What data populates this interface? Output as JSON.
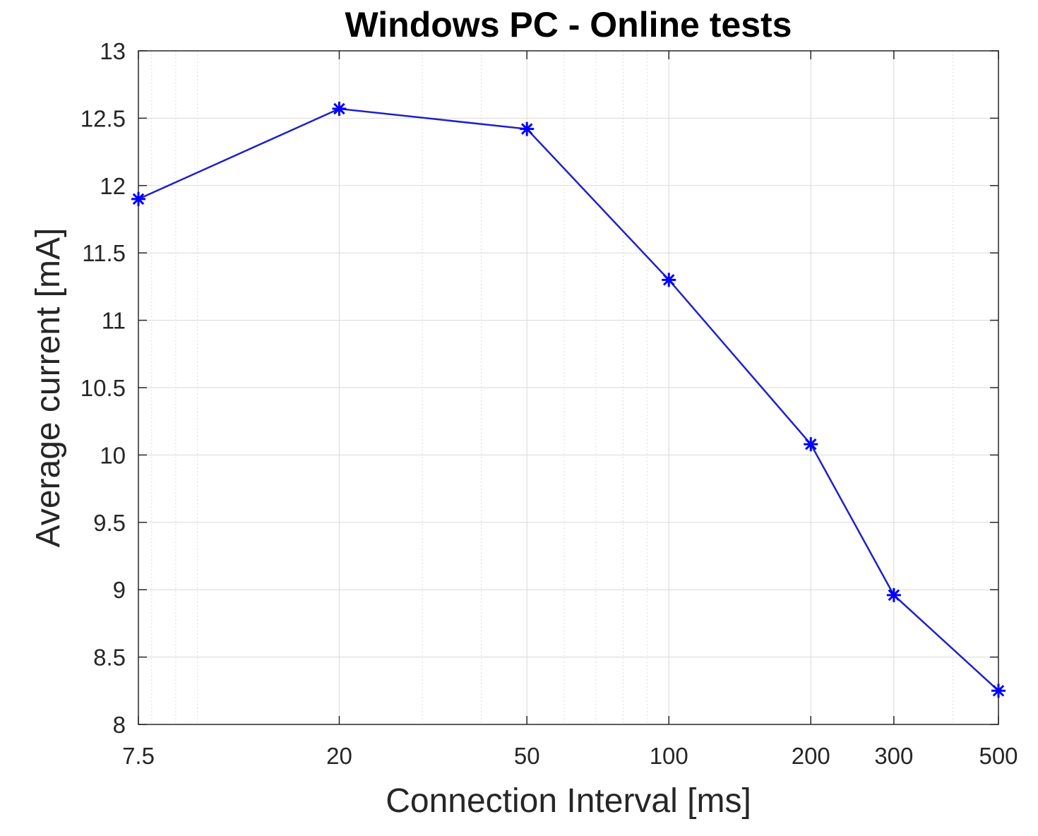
{
  "chart_data": {
    "type": "line",
    "title": "Windows PC - Online tests",
    "xlabel": "Connection Interval [ms]",
    "ylabel": "Average current [mA]",
    "xscale": "log",
    "xlim": [
      7.5,
      500
    ],
    "ylim": [
      8,
      13
    ],
    "xticks": [
      7.5,
      20,
      50,
      100,
      200,
      300,
      500
    ],
    "xtick_labels": [
      "7.5",
      "20",
      "50",
      "100",
      "200",
      "300",
      "500"
    ],
    "yticks": [
      8,
      8.5,
      9,
      9.5,
      10,
      10.5,
      11,
      11.5,
      12,
      12.5,
      13
    ],
    "ytick_labels": [
      "8",
      "8.5",
      "9",
      "9.5",
      "10",
      "10.5",
      "11",
      "11.5",
      "12",
      "12.5",
      "13"
    ],
    "grid": true,
    "minor_grid": true,
    "series": [
      {
        "marker": "asterisk",
        "color": "#0000ff",
        "line_color": "#1f1fcc",
        "x": [
          7.5,
          20,
          50,
          100,
          200,
          300,
          500
        ],
        "y": [
          11.9,
          12.57,
          12.42,
          11.3,
          10.08,
          8.96,
          8.25
        ]
      }
    ]
  }
}
